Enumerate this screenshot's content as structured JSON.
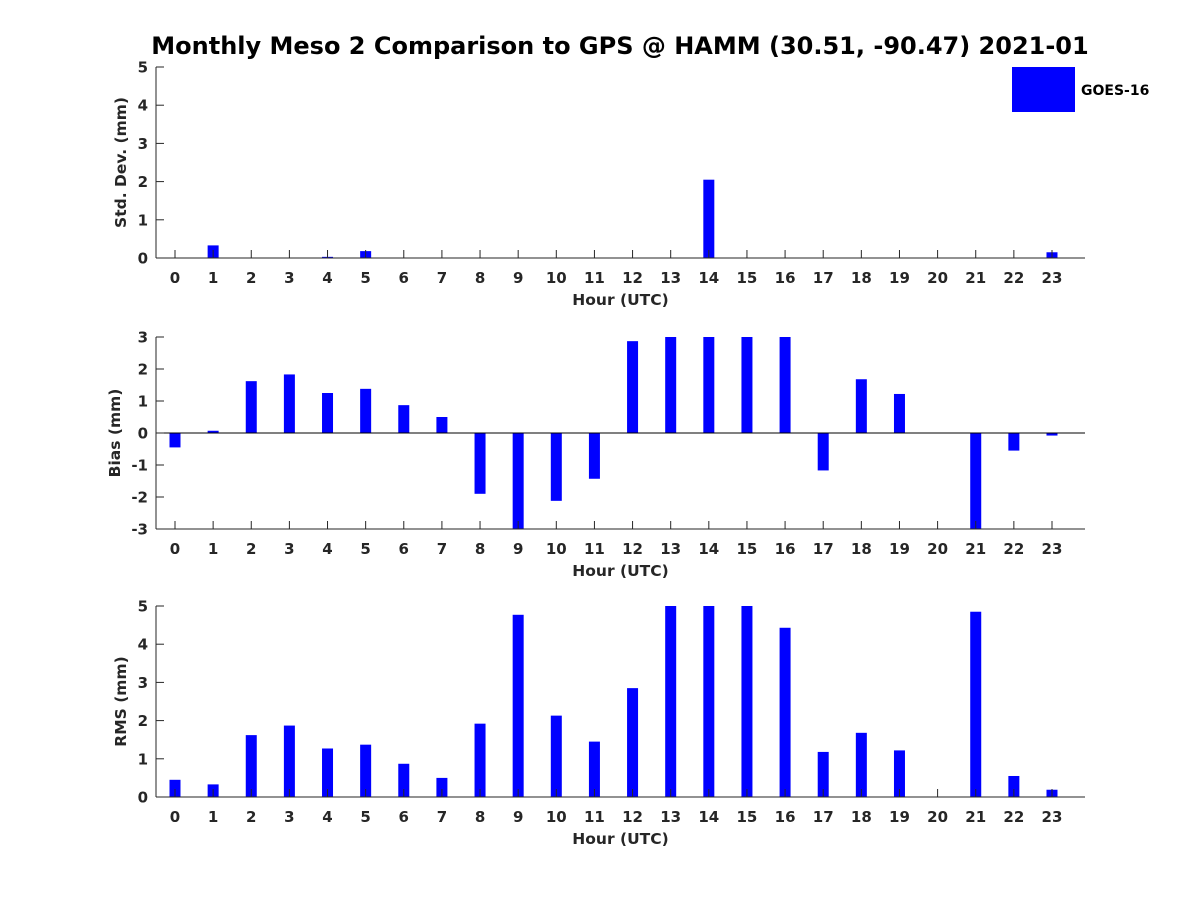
{
  "title": "Monthly Meso 2 Comparison to GPS @ HAMM (30.51, -90.47) 2021-01",
  "legend": {
    "label": "GOES-16",
    "color": "#0000ff",
    "placement": "top-right"
  },
  "chart_data": [
    {
      "type": "bar",
      "name": "stddev",
      "categories": [
        "0",
        "1",
        "2",
        "3",
        "4",
        "5",
        "6",
        "7",
        "8",
        "9",
        "10",
        "11",
        "12",
        "13",
        "14",
        "15",
        "16",
        "17",
        "18",
        "19",
        "20",
        "21",
        "22",
        "23"
      ],
      "values": [
        0,
        0.33,
        0,
        0,
        0.03,
        0.18,
        0,
        0,
        0,
        0,
        0,
        0,
        0,
        0,
        2.05,
        0,
        0,
        0,
        0,
        0,
        0,
        0,
        0,
        0.15
      ],
      "xlabel": "Hour (UTC)",
      "ylabel": "Std. Dev. (mm)",
      "ylim": [
        0,
        5
      ],
      "yticks": [
        0,
        1,
        2,
        3,
        4,
        5
      ],
      "series": [
        {
          "name": "GOES-16",
          "color": "#0000ff"
        }
      ]
    },
    {
      "type": "bar",
      "name": "bias",
      "categories": [
        "0",
        "1",
        "2",
        "3",
        "4",
        "5",
        "6",
        "7",
        "8",
        "9",
        "10",
        "11",
        "12",
        "13",
        "14",
        "15",
        "16",
        "17",
        "18",
        "19",
        "20",
        "21",
        "22",
        "23"
      ],
      "values": [
        -0.45,
        0.07,
        1.62,
        1.83,
        1.25,
        1.38,
        0.87,
        0.5,
        -1.9,
        -3.0,
        -2.12,
        -1.43,
        2.87,
        3.0,
        3.0,
        3.0,
        3.0,
        -1.17,
        1.68,
        1.22,
        0,
        -3.0,
        -0.55,
        -0.08
      ],
      "xlabel": "Hour (UTC)",
      "ylabel": "Bias (mm)",
      "ylim": [
        -3,
        3
      ],
      "yticks": [
        -3,
        -2,
        -1,
        0,
        1,
        2,
        3
      ],
      "series": [
        {
          "name": "GOES-16",
          "color": "#0000ff"
        }
      ]
    },
    {
      "type": "bar",
      "name": "rms",
      "categories": [
        "0",
        "1",
        "2",
        "3",
        "4",
        "5",
        "6",
        "7",
        "8",
        "9",
        "10",
        "11",
        "12",
        "13",
        "14",
        "15",
        "16",
        "17",
        "18",
        "19",
        "20",
        "21",
        "22",
        "23"
      ],
      "values": [
        0.45,
        0.33,
        1.62,
        1.87,
        1.27,
        1.37,
        0.87,
        0.5,
        1.92,
        4.77,
        2.13,
        1.45,
        2.85,
        5.0,
        5.0,
        5.0,
        4.43,
        1.18,
        1.68,
        1.22,
        0,
        4.85,
        0.55,
        0.19
      ],
      "xlabel": "Hour (UTC)",
      "ylabel": "RMS (mm)",
      "ylim": [
        0,
        5
      ],
      "yticks": [
        0,
        1,
        2,
        3,
        4,
        5
      ],
      "series": [
        {
          "name": "GOES-16",
          "color": "#0000ff"
        }
      ]
    }
  ]
}
